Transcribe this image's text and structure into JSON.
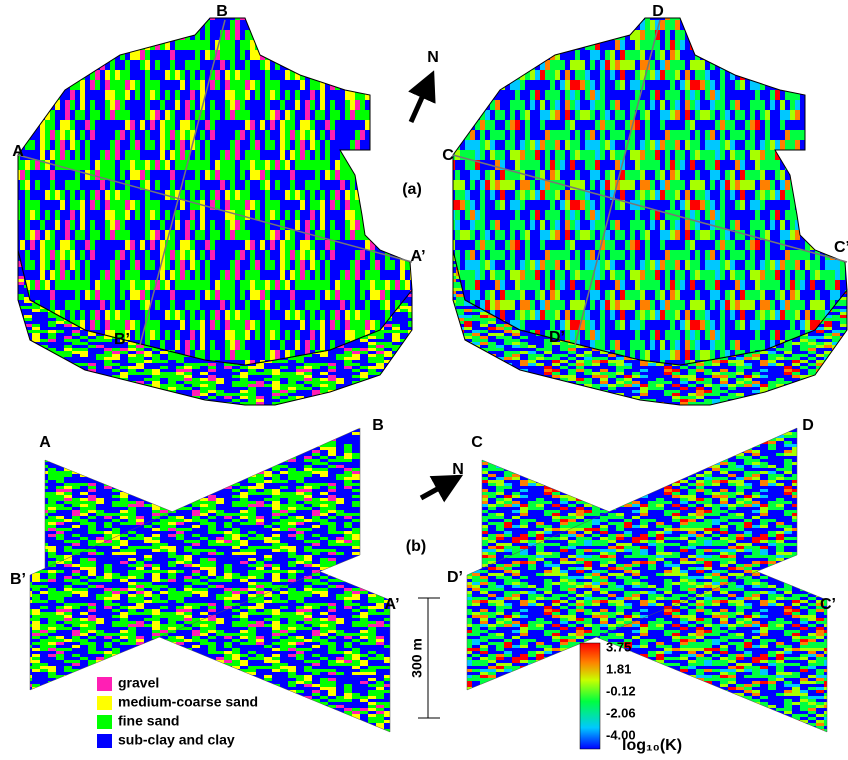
{
  "panel_a": {
    "label": "(a)",
    "north": "N",
    "left_labels": [
      "B",
      "A",
      "A’",
      "B’"
    ],
    "right_labels": [
      "D",
      "C",
      "C’",
      "D’"
    ]
  },
  "panel_b": {
    "label": "(b)",
    "north": "N",
    "left_labels": [
      "A",
      "B",
      "B’",
      "A’"
    ],
    "right_labels": [
      "C",
      "D",
      "D’",
      "C’"
    ],
    "scale_bar": "300 m"
  },
  "legend": {
    "items": [
      {
        "name": "gravel",
        "color": "#ff1fb4"
      },
      {
        "name": "medium-coarse sand",
        "color": "#ffff00"
      },
      {
        "name": "fine sand",
        "color": "#00ff00"
      },
      {
        "name": "sub-clay and clay",
        "color": "#0000ff"
      }
    ]
  },
  "colorbar": {
    "ticks": [
      "3.75",
      "1.81",
      "-0.12",
      "-2.06",
      "-4.00"
    ],
    "label": "log₁₀(K)"
  }
}
